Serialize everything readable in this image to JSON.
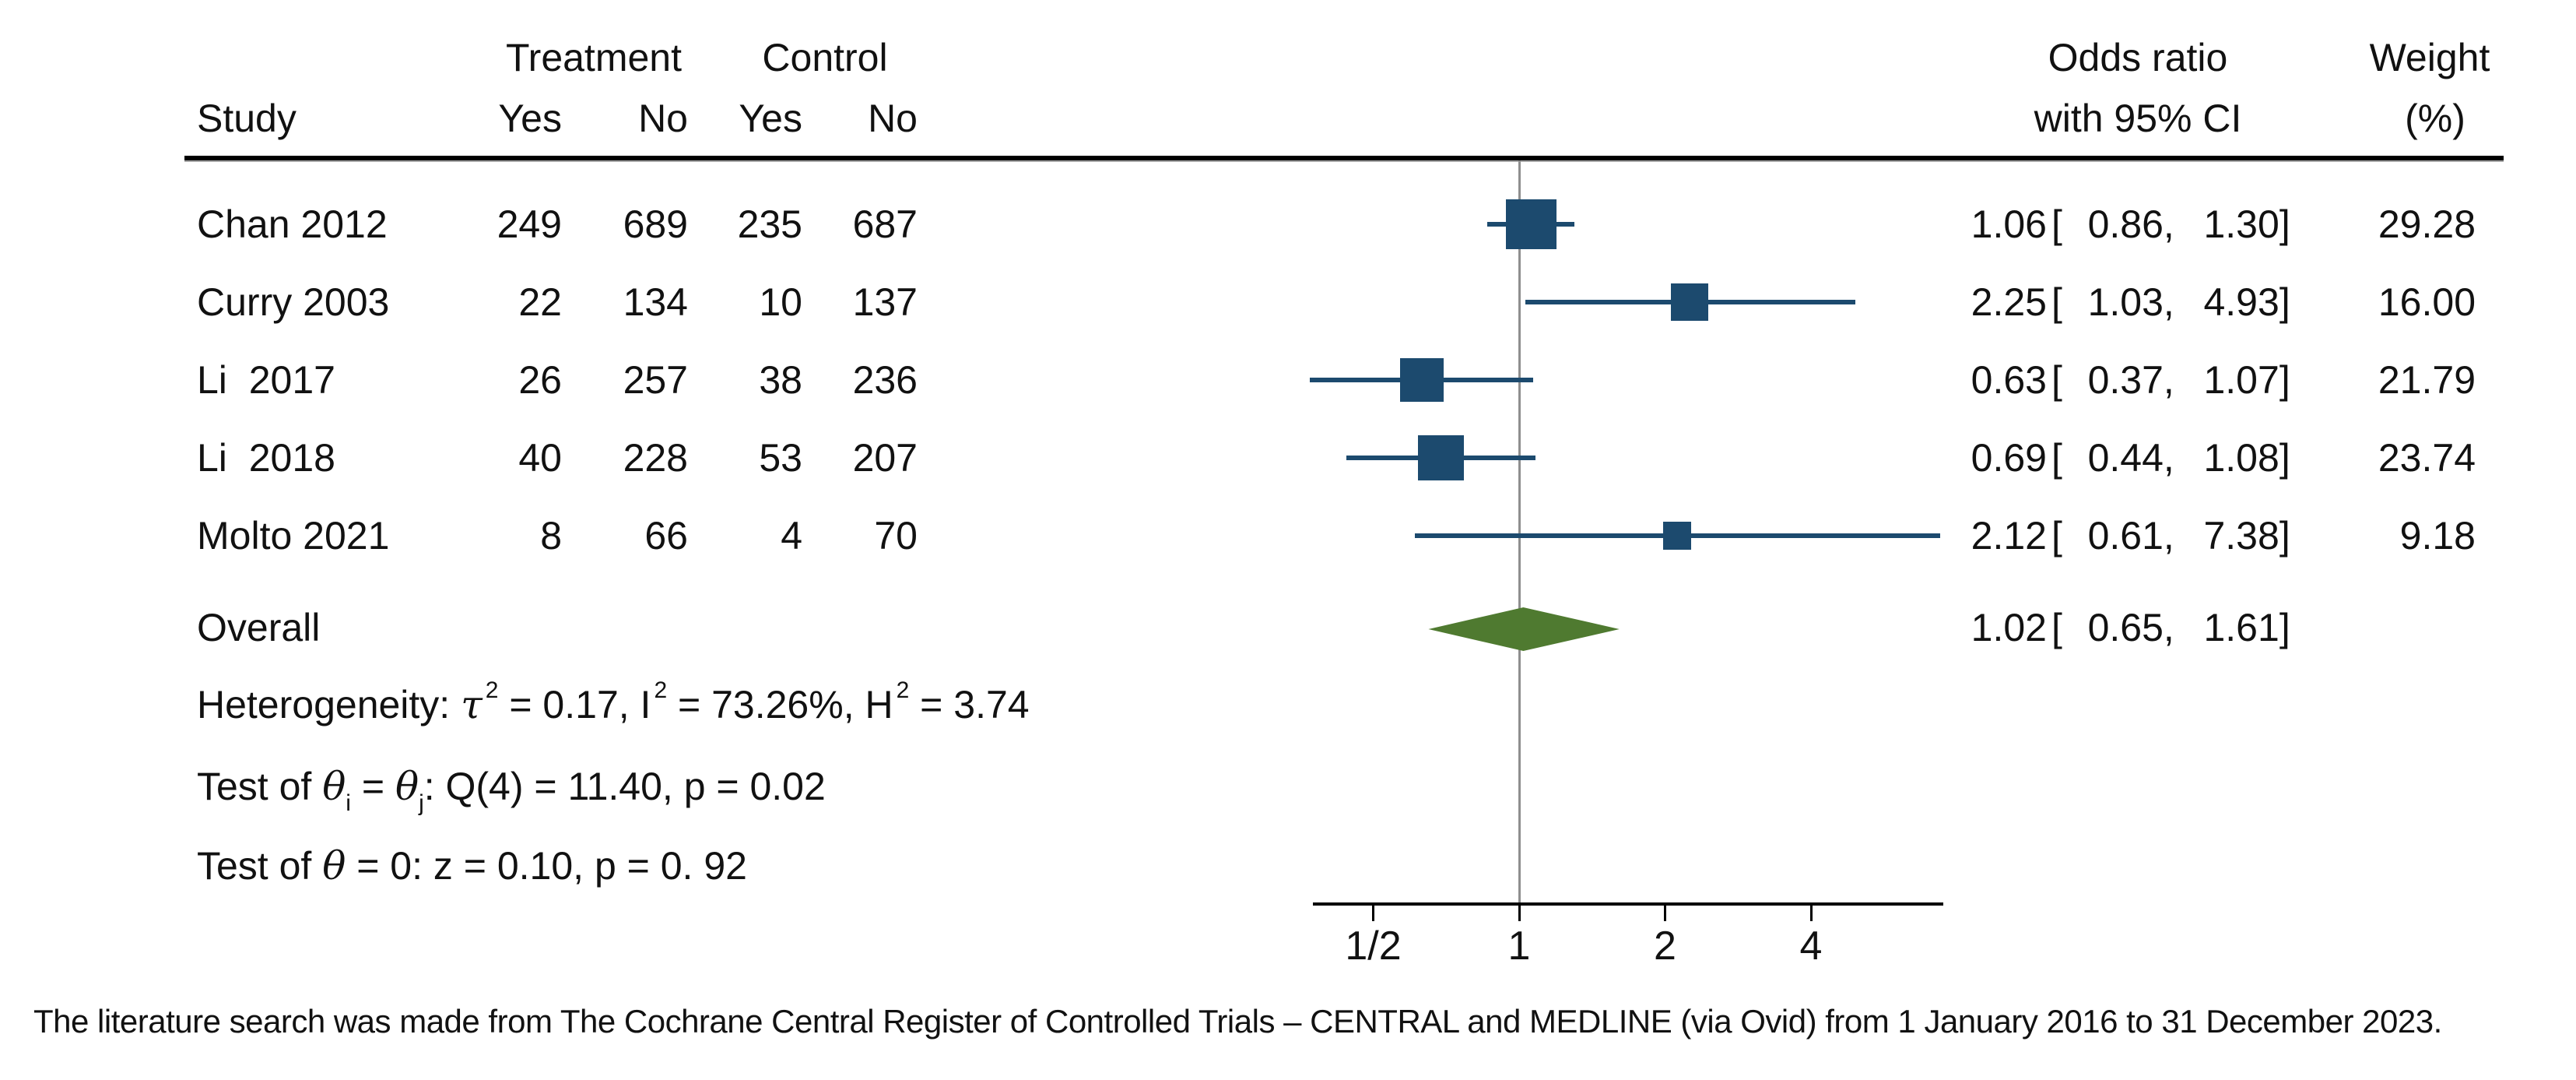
{
  "table": {
    "headers": {
      "study": "Study",
      "treatment_group": "Treatment",
      "control_group": "Control",
      "t_yes": "Yes",
      "t_no": "No",
      "c_yes": "Yes",
      "c_no": "No",
      "odds_ratio_line1": "Odds ratio",
      "odds_ratio_line2": "with 95% CI",
      "weight_line1": "Weight",
      "weight_line2": "(%)"
    },
    "fmt": {
      "open_bracket": "[",
      "comma": ",",
      "close_bracket": "]"
    },
    "rows": [
      {
        "name": "Chan 2012",
        "t_yes": "249",
        "t_no": "689",
        "c_yes": "235",
        "c_no": "687",
        "or": "1.06",
        "lo": "0.86",
        "hi": "1.30",
        "weight": "29.28"
      },
      {
        "name": "Curry 2003",
        "t_yes": "22",
        "t_no": "134",
        "c_yes": "10",
        "c_no": "137",
        "or": "2.25",
        "lo": "1.03",
        "hi": "4.93",
        "weight": "16.00"
      },
      {
        "name": "Li  2017",
        "t_yes": "26",
        "t_no": "257",
        "c_yes": "38",
        "c_no": "236",
        "or": "0.63",
        "lo": "0.37",
        "hi": "1.07",
        "weight": "21.79"
      },
      {
        "name": "Li  2018",
        "t_yes": "40",
        "t_no": "228",
        "c_yes": "53",
        "c_no": "207",
        "or": "0.69",
        "lo": "0.44",
        "hi": "1.08",
        "weight": "23.74"
      },
      {
        "name": "Molto 2021",
        "t_yes": "8",
        "t_no": "66",
        "c_yes": "4",
        "c_no": "70",
        "or": "2.12",
        "lo": "0.61",
        "hi": "7.38",
        "weight": "9.18"
      }
    ],
    "overall": {
      "label": "Overall",
      "or": "1.02",
      "lo": "0.65",
      "hi": "1.61"
    }
  },
  "stats": {
    "het_label": "Heterogeneity: ",
    "het_tau": "τ",
    "sup2": "2",
    "het_seg1": " = 0.17, I",
    "het_seg2": " = 73.26%, H",
    "het_seg3": " = 3.74",
    "tb_seg1": "Test of ",
    "tb_theta1": "θ",
    "tb_sub_i": "i",
    "tb_eq": " = ",
    "tb_theta2": "θ",
    "tb_sub_j": "j",
    "tb_seg2": ": Q(4) = 11.40, p = 0.02",
    "to_seg1": "Test of ",
    "to_theta": "θ",
    "to_seg2": " = 0: z = 0.10, p = 0. 92"
  },
  "axis": {
    "tick_labels": [
      "1/2",
      "1",
      "2",
      "4"
    ]
  },
  "footnote": "The literature search was made from The Cochrane Central Register of Controlled Trials – CENTRAL and MEDLINE (via Ovid) from 1 January 2016 to 31 December 2023.",
  "colors": {
    "marker": "#1c4a6e",
    "ci_line": "#1c4a6e",
    "diamond": "#4f7a30",
    "reference_line": "#8f8f8f",
    "axis": "#000000",
    "text": "#111111"
  },
  "chart_data": {
    "type": "scatter",
    "subtype": "forest_plot_meta_analysis",
    "title": "",
    "xlabel": "Odds ratio",
    "x_scale": "log2",
    "x_ticks": [
      0.5,
      1,
      2,
      4
    ],
    "x_tick_labels": [
      "1/2",
      "1",
      "2",
      "4"
    ],
    "x_axis_range": [
      0.375,
      7.55
    ],
    "reference_value": 1,
    "grid": false,
    "legend": "none",
    "studies": [
      {
        "study": "Chan 2012",
        "treatment_yes": 249,
        "treatment_no": 689,
        "control_yes": 235,
        "control_no": 687,
        "or": 1.06,
        "ci_low": 0.86,
        "ci_high": 1.3,
        "weight_pct": 29.28
      },
      {
        "study": "Curry 2003",
        "treatment_yes": 22,
        "treatment_no": 134,
        "control_yes": 10,
        "control_no": 137,
        "or": 2.25,
        "ci_low": 1.03,
        "ci_high": 4.93,
        "weight_pct": 16.0
      },
      {
        "study": "Li 2017",
        "treatment_yes": 26,
        "treatment_no": 257,
        "control_yes": 38,
        "control_no": 236,
        "or": 0.63,
        "ci_low": 0.37,
        "ci_high": 1.07,
        "weight_pct": 21.79
      },
      {
        "study": "Li 2018",
        "treatment_yes": 40,
        "treatment_no": 228,
        "control_yes": 53,
        "control_no": 207,
        "or": 0.69,
        "ci_low": 0.44,
        "ci_high": 1.08,
        "weight_pct": 23.74
      },
      {
        "study": "Molto 2021",
        "treatment_yes": 8,
        "treatment_no": 66,
        "control_yes": 4,
        "control_no": 70,
        "or": 2.12,
        "ci_low": 0.61,
        "ci_high": 7.38,
        "weight_pct": 9.18
      }
    ],
    "overall": {
      "or": 1.02,
      "ci_low": 0.65,
      "ci_high": 1.61
    },
    "heterogeneity": {
      "tau2": 0.17,
      "I2_pct": 73.26,
      "H2": 3.74
    },
    "test_between": {
      "Q_df": 4,
      "Q": 11.4,
      "p": 0.02
    },
    "test_overall": {
      "z": 0.1,
      "p": 0.92
    }
  }
}
